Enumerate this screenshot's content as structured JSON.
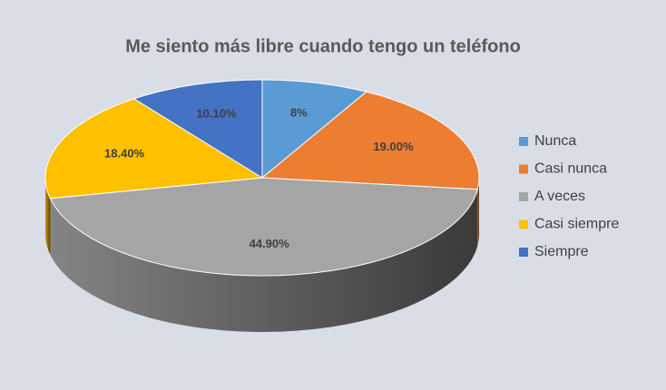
{
  "chart_data": {
    "type": "pie3d",
    "title": "Me siento más libre cuando tengo un teléfono",
    "categories": [
      "Nunca",
      "Casi nunca",
      "A veces",
      "Casi siempre",
      "Siempre"
    ],
    "values": [
      8,
      19,
      44.9,
      18.4,
      10.1
    ],
    "value_labels": [
      "8%",
      "19.00%",
      "44.90%",
      "18.40%",
      "10.10%"
    ],
    "colors": [
      "#5b9bd5",
      "#ed7d31",
      "#a5a5a5",
      "#ffc000",
      "#4472c4"
    ],
    "legend": "right"
  }
}
